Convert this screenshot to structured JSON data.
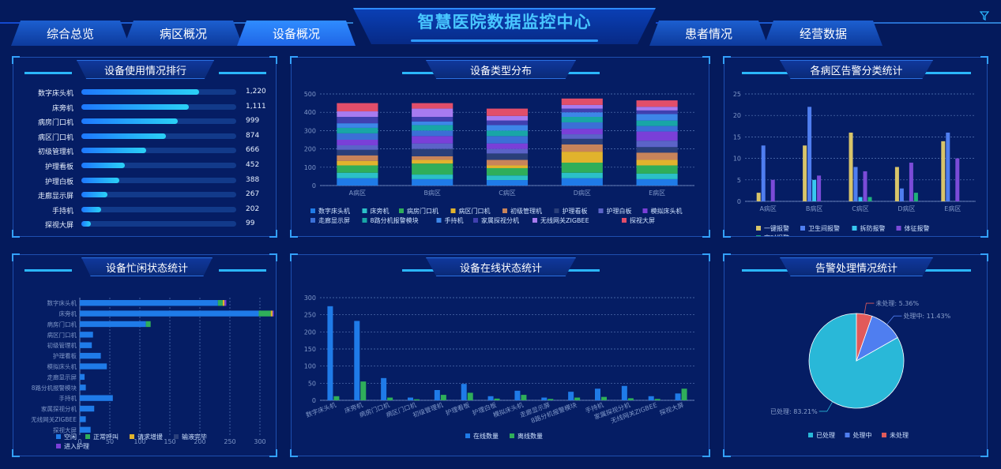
{
  "header": {
    "title": "智慧医院数据监控中心",
    "tabs_left": [
      "综合总览",
      "病区概况",
      "设备概况"
    ],
    "tabs_right": [
      "患者情况",
      "经营数据"
    ],
    "active_tab": "设备概况"
  },
  "panels": {
    "usage_rank": {
      "title": "设备使用情况排行",
      "items": [
        {
          "label": "数字床头机",
          "value": 1220,
          "display": "1,220"
        },
        {
          "label": "床旁机",
          "value": 1111,
          "display": "1,111"
        },
        {
          "label": "病房门口机",
          "value": 999,
          "display": "999"
        },
        {
          "label": "病区门口机",
          "value": 874,
          "display": "874"
        },
        {
          "label": "初级管理机",
          "value": 666,
          "display": "666"
        },
        {
          "label": "护理看板",
          "value": 452,
          "display": "452"
        },
        {
          "label": "护理白板",
          "value": 388,
          "display": "388"
        },
        {
          "label": "走廊显示屏",
          "value": 267,
          "display": "267"
        },
        {
          "label": "手持机",
          "value": 202,
          "display": "202"
        },
        {
          "label": "探视大屏",
          "value": 99,
          "display": "99"
        }
      ],
      "max": 1600
    },
    "type_dist": {
      "title": "设备类型分布"
    },
    "alarm_stats": {
      "title": "各病区告警分类统计"
    },
    "busy_idle": {
      "title": "设备忙闲状态统计"
    },
    "online_stats": {
      "title": "设备在线状态统计"
    },
    "alarm_handling": {
      "title": "告警处理情况统计"
    }
  },
  "colors": {
    "bg": "#041a5c",
    "accent": "#2e9bff",
    "title": "#48c6ff"
  },
  "chart_data": [
    {
      "id": "type_dist",
      "type": "bar",
      "stacked": true,
      "categories": [
        "A病区",
        "B病区",
        "C病区",
        "D病区",
        "E病区"
      ],
      "ylim": [
        0,
        500
      ],
      "yticks": [
        0,
        100,
        200,
        300,
        400,
        500
      ],
      "legend_position": "bottom",
      "series": [
        {
          "name": "数字床头机",
          "color": "#1f7be8",
          "values": [
            40,
            35,
            30,
            40,
            35
          ]
        },
        {
          "name": "床旁机",
          "color": "#2bc0c8",
          "values": [
            30,
            25,
            25,
            30,
            30
          ]
        },
        {
          "name": "病房门口机",
          "color": "#2fae5a",
          "values": [
            40,
            60,
            40,
            55,
            45
          ]
        },
        {
          "name": "病区门口机",
          "color": "#e1b32d",
          "values": [
            25,
            20,
            15,
            60,
            30
          ]
        },
        {
          "name": "初级管理机",
          "color": "#c8845a",
          "values": [
            30,
            20,
            30,
            40,
            40
          ]
        },
        {
          "name": "护理看板",
          "color": "#2a3f7a",
          "values": [
            30,
            40,
            35,
            30,
            30
          ]
        },
        {
          "name": "护理白板",
          "color": "#5b63c8",
          "values": [
            25,
            30,
            25,
            25,
            35
          ]
        },
        {
          "name": "模拟床头机",
          "color": "#7a3fd8",
          "values": [
            30,
            40,
            30,
            30,
            50
          ]
        },
        {
          "name": "走廊显示屏",
          "color": "#3b6fd6",
          "values": [
            35,
            30,
            40,
            35,
            30
          ]
        },
        {
          "name": "8路分机报警模块",
          "color": "#18a6a6",
          "values": [
            30,
            30,
            30,
            30,
            30
          ]
        },
        {
          "name": "手持机",
          "color": "#3d86e8",
          "values": [
            25,
            20,
            30,
            25,
            35
          ]
        },
        {
          "name": "家属探视分机",
          "color": "#4040b0",
          "values": [
            35,
            25,
            25,
            20,
            20
          ]
        },
        {
          "name": "无线网关ZIGBEE",
          "color": "#a77bf0",
          "values": [
            30,
            45,
            25,
            20,
            20
          ]
        },
        {
          "name": "探视大屏",
          "color": "#e14e6a",
          "values": [
            45,
            30,
            40,
            35,
            35
          ]
        }
      ]
    },
    {
      "id": "alarm_stats",
      "type": "bar",
      "categories": [
        "A病区",
        "B病区",
        "C病区",
        "D病区",
        "E病区"
      ],
      "ylim": [
        0,
        25
      ],
      "yticks": [
        0,
        5,
        10,
        15,
        20,
        25
      ],
      "legend_position": "bottom",
      "series": [
        {
          "name": "一键报警",
          "color": "#d8c46a",
          "values": [
            2,
            13,
            16,
            8,
            14
          ]
        },
        {
          "name": "卫生间报警",
          "color": "#4f7ef0",
          "values": [
            13,
            22,
            8,
            3,
            16
          ]
        },
        {
          "name": "拆防报警",
          "color": "#38c8f0",
          "values": [
            0,
            5,
            1,
            0,
            0
          ]
        },
        {
          "name": "体征报警",
          "color": "#7b4bd8",
          "values": [
            5,
            6,
            7,
            9,
            10
          ]
        },
        {
          "name": "定时报警",
          "color": "#1fb07a",
          "values": [
            0,
            0,
            1,
            2,
            0
          ]
        }
      ]
    },
    {
      "id": "busy_idle",
      "type": "bar",
      "orientation": "horizontal",
      "stacked": true,
      "categories": [
        "数字床头机",
        "床旁机",
        "病房门口机",
        "病区门口机",
        "初级管理机",
        "护理看板",
        "模拟床头机",
        "走廊显示屏",
        "8路分机报警模块",
        "手持机",
        "家属探视分机",
        "无线网关ZIGBEE",
        "探视大屏"
      ],
      "xlim": [
        0,
        300
      ],
      "xticks": [
        0,
        50,
        100,
        150,
        200,
        250,
        300
      ],
      "legend_position": "bottom",
      "series": [
        {
          "name": "空闲",
          "color": "#1f7be8",
          "values": [
            230,
            298,
            110,
            22,
            20,
            35,
            45,
            8,
            10,
            55,
            24,
            10,
            18
          ]
        },
        {
          "name": "正常呼叫",
          "color": "#2fae5a",
          "values": [
            8,
            20,
            8,
            0,
            0,
            0,
            0,
            0,
            0,
            0,
            0,
            0,
            0
          ]
        },
        {
          "name": "请求增援",
          "color": "#e1b32d",
          "values": [
            3,
            3,
            0,
            0,
            0,
            0,
            0,
            0,
            0,
            0,
            0,
            0,
            0
          ]
        },
        {
          "name": "输液完毕",
          "color": "#2a3f7a",
          "values": [
            0,
            0,
            0,
            0,
            0,
            0,
            0,
            0,
            0,
            0,
            0,
            0,
            0
          ]
        },
        {
          "name": "进入护理",
          "color": "#7a3fd8",
          "values": [
            3,
            2,
            0,
            0,
            0,
            0,
            0,
            0,
            0,
            0,
            0,
            0,
            0
          ]
        }
      ]
    },
    {
      "id": "online_stats",
      "type": "bar",
      "categories": [
        "数字床头机",
        "床旁机",
        "病房门口机",
        "病区门口机",
        "初级管理机",
        "护理看板",
        "护理白板",
        "模拟床头机",
        "走廊显示屏",
        "8路分机报警模块",
        "手持机",
        "家属探视分机",
        "无线网关ZIGBEE",
        "探视大屏"
      ],
      "ylim": [
        0,
        300
      ],
      "yticks": [
        0,
        50,
        100,
        150,
        200,
        250,
        300
      ],
      "legend_position": "bottom",
      "series": [
        {
          "name": "在线数量",
          "color": "#1f7be8",
          "values": [
            275,
            232,
            65,
            8,
            30,
            48,
            12,
            28,
            8,
            25,
            34,
            42,
            12,
            20
          ]
        },
        {
          "name": "离线数量",
          "color": "#2fae5a",
          "values": [
            12,
            55,
            8,
            3,
            16,
            22,
            5,
            16,
            4,
            8,
            10,
            6,
            4,
            34
          ]
        }
      ]
    },
    {
      "id": "alarm_handling",
      "type": "pie",
      "legend_position": "bottom",
      "slices": [
        {
          "name": "已处理",
          "value": 83.21,
          "label": "已处理: 83.21%",
          "color": "#29b8d8"
        },
        {
          "name": "处理中",
          "value": 11.43,
          "label": "处理中: 11.43%",
          "color": "#4f7ef0"
        },
        {
          "name": "未处理",
          "value": 5.36,
          "label": "未处理: 5.36%",
          "color": "#e15a5a"
        }
      ]
    }
  ]
}
